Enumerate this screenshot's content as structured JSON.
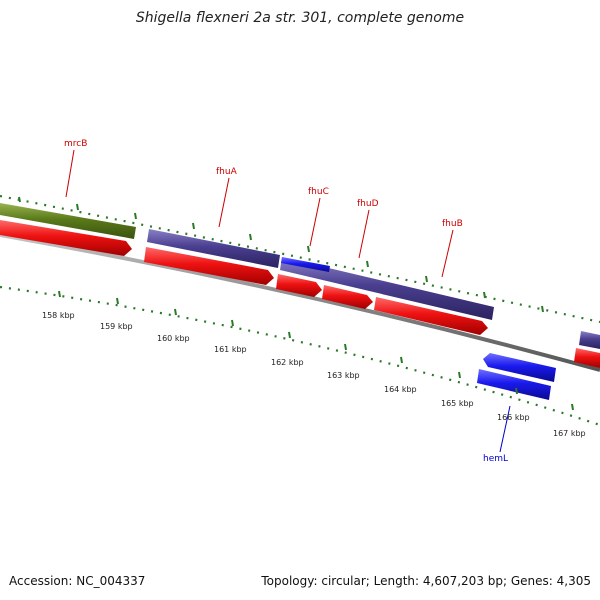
{
  "title": "Shigella flexneri 2a str. 301, complete genome",
  "footer": {
    "accession": "Accession: NC_004337",
    "summary": "Topology: circular; Length: 4,607,203 bp; Genes: 4,305"
  },
  "colors": {
    "backbone": "#888888",
    "ticks": "#2a7a2a",
    "label_red": "#cc0000",
    "label_blue": "#0000cc",
    "cds_red": "#ee1111",
    "operon_purple": "#4a3f8f",
    "blue": "#1a1aee",
    "olive": "#5a7a1a"
  },
  "ruler": [
    "158 kbp",
    "159 kbp",
    "160 kbp",
    "161 kbp",
    "162 kbp",
    "163 kbp",
    "164 kbp",
    "165 kbp",
    "166 kbp",
    "167 kbp"
  ],
  "gene_labels": [
    {
      "text": "mrcB",
      "color": "red"
    },
    {
      "text": "fhuA",
      "color": "red"
    },
    {
      "text": "fhuC",
      "color": "red"
    },
    {
      "text": "fhuD",
      "color": "red"
    },
    {
      "text": "fhuB",
      "color": "red"
    },
    {
      "text": "hemL",
      "color": "blue"
    }
  ]
}
